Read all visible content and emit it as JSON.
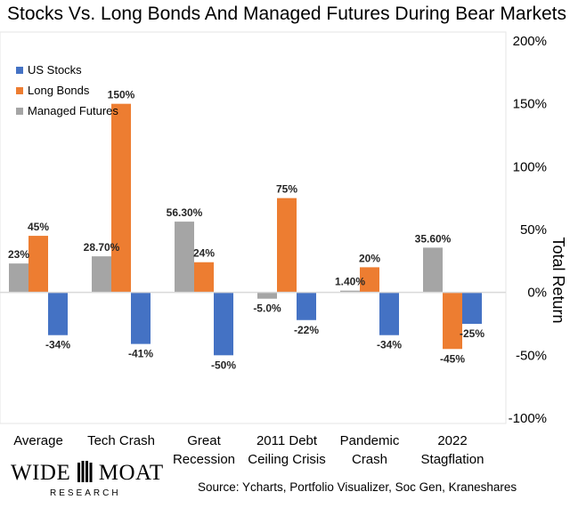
{
  "chart_data": {
    "type": "bar",
    "title": "Stocks Vs. Long Bonds And Managed Futures During Bear Markets",
    "ylabel": "Total Return",
    "ylim": [
      -100,
      200
    ],
    "yticks": [
      -100,
      -50,
      0,
      50,
      100,
      150,
      200
    ],
    "ytick_labels": [
      "-100%",
      "-50%",
      "0%",
      "50%",
      "100%",
      "150%",
      "200%"
    ],
    "y_axis_side": "right",
    "legend_position": "top-left",
    "categories": [
      [
        "Average"
      ],
      [
        "Tech Crash"
      ],
      [
        "Great",
        "Recession"
      ],
      [
        "2011 Debt",
        "Ceiling Crisis"
      ],
      [
        "Pandemic",
        "Crash"
      ],
      [
        "2022",
        "Stagflation"
      ]
    ],
    "series": [
      {
        "name": "Managed Futures",
        "color": "#a5a5a5",
        "values": [
          23,
          28.7,
          56.3,
          -5.0,
          1.4,
          35.6
        ],
        "labels": [
          "23%",
          "28.70%",
          "56.30%",
          "-5.0%",
          "1.40%",
          "35.60%"
        ]
      },
      {
        "name": "Long Bonds",
        "color": "#ed7d31",
        "values": [
          45,
          150,
          24,
          75,
          20,
          -45
        ],
        "labels": [
          "45%",
          "150%",
          "24%",
          "75%",
          "20%",
          "-45%"
        ]
      },
      {
        "name": "US Stocks",
        "color": "#4472c4",
        "values": [
          -34,
          -41,
          -50,
          -22,
          -34,
          -25
        ],
        "labels": [
          "-34%",
          "-41%",
          "-50%",
          "-22%",
          "-34%",
          "-25%"
        ]
      }
    ],
    "legend_order": [
      "US Stocks",
      "Long Bonds",
      "Managed Futures"
    ]
  },
  "source_note": "Source: Ycharts, Portfolio Visualizer, Soc Gen, Kraneshares",
  "logo": {
    "main": "WIDE MOAT",
    "sub": "RESEARCH"
  }
}
